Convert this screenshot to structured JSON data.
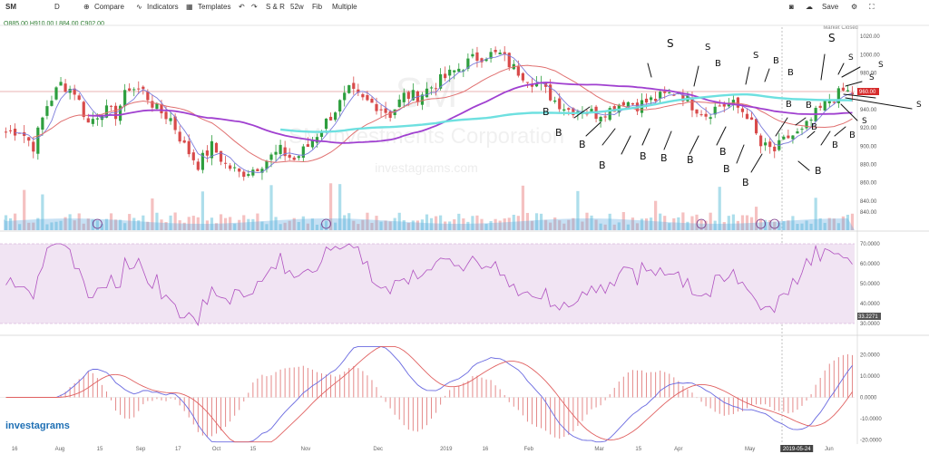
{
  "toolbar": {
    "symbol": "SM",
    "interval": "D",
    "compare": "Compare",
    "indicators": "Indicators",
    "templates": "Templates",
    "sr": "S & R",
    "range": "52w",
    "fib": "Fib",
    "multiple": "Multiple",
    "save": "Save"
  },
  "ohlc": {
    "o": "O885.00",
    "h": "H910.00",
    "l": "L884.00",
    "c": "C902.00"
  },
  "market_status": "Market Closed",
  "watermark": {
    "ticker": "SM",
    "name": "SM Investments Corporation",
    "site": "investagrams.com"
  },
  "logo": "investagrams",
  "colors": {
    "up": "#2e9e3e",
    "down": "#d84a4a",
    "ma_fast": "#7b7bdb",
    "ma_slow": "#e07070",
    "ma_purple": "#a040d0",
    "ma_cyan": "#6ee0e0",
    "rsi_fill": "#f1e4f3",
    "rsi_line": "#b052c0",
    "macd": "#6a6ae0",
    "signal": "#e06060"
  },
  "chart_data": [
    {
      "type": "candlestick",
      "panel": "price",
      "ylim": [
        830,
        1030
      ],
      "yticks": [
        "1020.00",
        "1000.00",
        "980.00",
        "960.00",
        "940.00",
        "920.00",
        "900.00",
        "880.00",
        "860.00",
        "840.00"
      ],
      "current_price_label": "960.00",
      "months": [
        {
          "label": "16",
          "pos": 0.013
        },
        {
          "label": "Aug",
          "pos": 0.066
        },
        {
          "label": "15",
          "pos": 0.113
        },
        {
          "label": "Sep",
          "pos": 0.161
        },
        {
          "label": "17",
          "pos": 0.205
        },
        {
          "label": "Oct",
          "pos": 0.25
        },
        {
          "label": "15",
          "pos": 0.293
        },
        {
          "label": "Nov",
          "pos": 0.355
        },
        {
          "label": "Dec",
          "pos": 0.44
        },
        {
          "label": "2019",
          "pos": 0.52
        },
        {
          "label": "16",
          "pos": 0.566
        },
        {
          "label": "Feb",
          "pos": 0.617
        },
        {
          "label": "Mar",
          "pos": 0.7
        },
        {
          "label": "15",
          "pos": 0.746
        },
        {
          "label": "Apr",
          "pos": 0.793
        },
        {
          "label": "May",
          "pos": 0.877
        },
        {
          "label": "2019-05-24",
          "pos": 0.932
        },
        {
          "label": "Jun",
          "pos": 0.97
        }
      ],
      "close_anchors": [
        [
          0,
          915
        ],
        [
          3,
          918
        ],
        [
          6,
          900
        ],
        [
          9,
          945
        ],
        [
          12,
          968
        ],
        [
          15,
          960
        ],
        [
          18,
          925
        ],
        [
          21,
          940
        ],
        [
          24,
          935
        ],
        [
          27,
          965
        ],
        [
          30,
          960
        ],
        [
          33,
          940
        ],
        [
          36,
          930
        ],
        [
          39,
          900
        ],
        [
          42,
          880
        ],
        [
          45,
          900
        ],
        [
          48,
          880
        ],
        [
          51,
          870
        ],
        [
          54,
          875
        ],
        [
          57,
          885
        ],
        [
          60,
          895
        ],
        [
          63,
          885
        ],
        [
          66,
          900
        ],
        [
          69,
          920
        ],
        [
          72,
          940
        ],
        [
          75,
          960
        ],
        [
          78,
          950
        ],
        [
          81,
          945
        ],
        [
          84,
          935
        ],
        [
          87,
          955
        ],
        [
          90,
          955
        ],
        [
          93,
          965
        ],
        [
          96,
          975
        ],
        [
          99,
          985
        ],
        [
          102,
          995
        ],
        [
          105,
          1000
        ],
        [
          108,
          1000
        ],
        [
          111,
          985
        ],
        [
          114,
          975
        ],
        [
          117,
          965
        ],
        [
          120,
          950
        ],
        [
          123,
          940
        ],
        [
          126,
          940
        ],
        [
          129,
          935
        ],
        [
          132,
          940
        ],
        [
          135,
          950
        ],
        [
          138,
          945
        ],
        [
          141,
          950
        ],
        [
          144,
          955
        ],
        [
          147,
          960
        ],
        [
          150,
          945
        ],
        [
          153,
          935
        ],
        [
          156,
          945
        ],
        [
          159,
          945
        ],
        [
          162,
          935
        ],
        [
          165,
          900
        ],
        [
          168,
          895
        ],
        [
          171,
          910
        ],
        [
          174,
          915
        ],
        [
          177,
          935
        ],
        [
          180,
          950
        ],
        [
          183,
          960
        ],
        [
          185,
          958
        ]
      ],
      "volume_scale": [
        0,
        1
      ],
      "volume_ylabel": "840.00",
      "annotations": [
        "S",
        "S",
        "S",
        "S",
        "S",
        "S",
        "S",
        "S",
        "S",
        "S",
        "S",
        "S",
        "B",
        "B",
        "B",
        "B",
        "B",
        "B",
        "B",
        "B",
        "B",
        "B",
        "B",
        "B",
        "B",
        "B",
        "B",
        "B",
        "B",
        "B",
        "B",
        "B",
        "B"
      ]
    },
    {
      "type": "line",
      "panel": "rsi",
      "ylim": [
        25,
        75
      ],
      "yticks": [
        "70.0000",
        "60.0000",
        "50.0000",
        "40.0000",
        "30.0000"
      ],
      "last_label": "33.2271",
      "band": [
        30,
        70
      ]
    },
    {
      "type": "line",
      "panel": "macd",
      "ylim": [
        -22,
        28
      ],
      "yticks": [
        "20.0000",
        "10.0000",
        "0.0000",
        "-10.0000",
        "-20.0000"
      ]
    }
  ]
}
